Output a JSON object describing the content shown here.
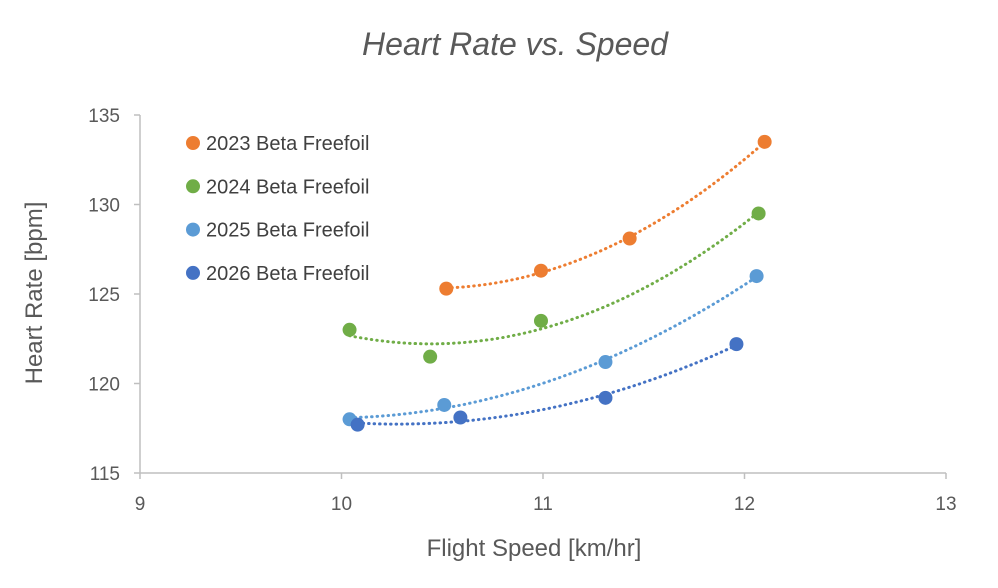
{
  "chart_data": {
    "type": "scatter",
    "title": "Heart Rate vs. Speed",
    "xlabel": "Flight Speed [km/hr]",
    "ylabel": "Heart Rate [bpm]",
    "xlim": [
      9,
      13
    ],
    "ylim": [
      115,
      135
    ],
    "x_ticks": [
      "9",
      "10",
      "11",
      "12",
      "13"
    ],
    "y_ticks": [
      "115",
      "120",
      "125",
      "130",
      "135"
    ],
    "legend_position": "top-left",
    "trendline": "polynomial (order 2), dotted",
    "series": [
      {
        "name": "2023 Beta Freefoil",
        "color": "#ED7D31",
        "x": [
          10.52,
          10.99,
          11.43,
          12.1
        ],
        "y": [
          125.3,
          126.3,
          128.1,
          133.5
        ]
      },
      {
        "name": "2024 Beta Freefoil",
        "color": "#70AD47",
        "x": [
          10.04,
          10.44,
          10.99,
          12.07
        ],
        "y": [
          123.0,
          121.5,
          123.5,
          129.5
        ]
      },
      {
        "name": "2025 Beta Freefoil",
        "color": "#5B9BD5",
        "x": [
          10.04,
          10.51,
          11.31,
          12.06
        ],
        "y": [
          118.0,
          118.8,
          121.2,
          126.0
        ]
      },
      {
        "name": "2026 Beta Freefoil",
        "color": "#4472C4",
        "x": [
          10.08,
          10.59,
          11.31,
          11.96
        ],
        "y": [
          117.7,
          118.1,
          119.2,
          122.2
        ]
      }
    ]
  }
}
